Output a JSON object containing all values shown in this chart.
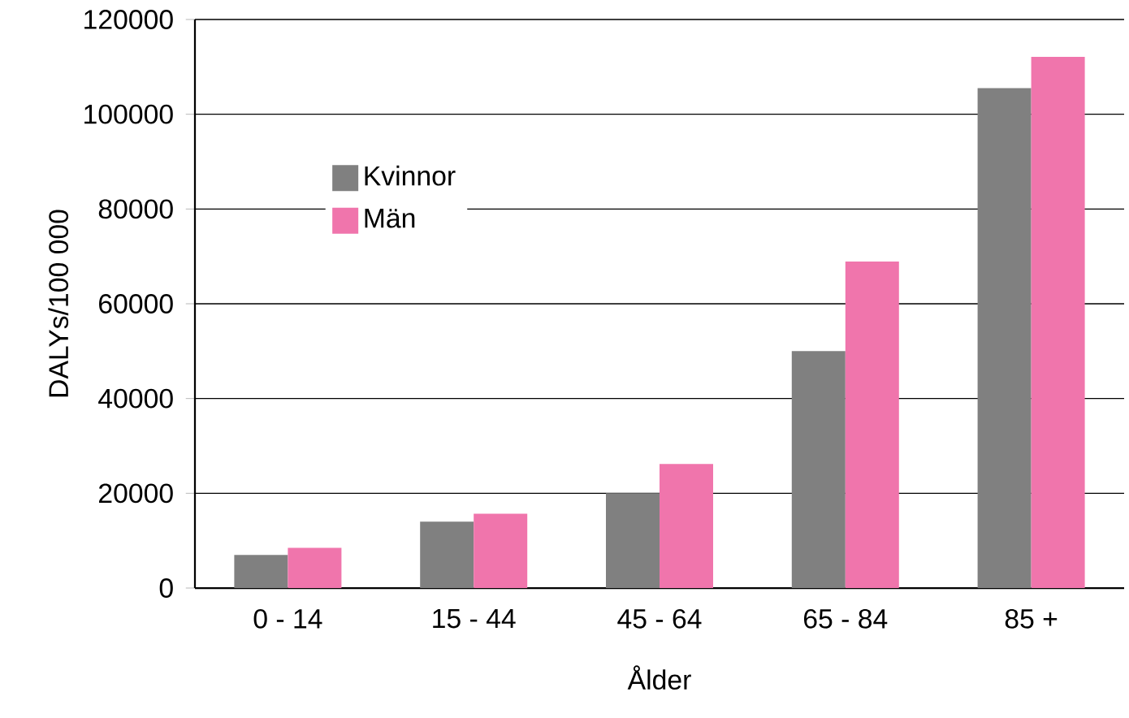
{
  "chart_data": {
    "type": "bar",
    "xlabel": "Ålder",
    "ylabel": "DALYs/100 000",
    "categories": [
      "0 - 14",
      "15 - 44",
      "45 - 64",
      "65 - 84",
      "85 +"
    ],
    "series": [
      {
        "name": "Kvinnor",
        "color": "#808080",
        "values": [
          7000,
          14000,
          20000,
          50000,
          105500
        ]
      },
      {
        "name": "Män",
        "color": "#f075ac",
        "values": [
          8500,
          15700,
          26200,
          68900,
          112100
        ]
      }
    ],
    "ylim": [
      0,
      120000
    ],
    "yticks": [
      0,
      20000,
      40000,
      60000,
      80000,
      100000,
      120000
    ],
    "grid": "y",
    "legend": "top left"
  }
}
